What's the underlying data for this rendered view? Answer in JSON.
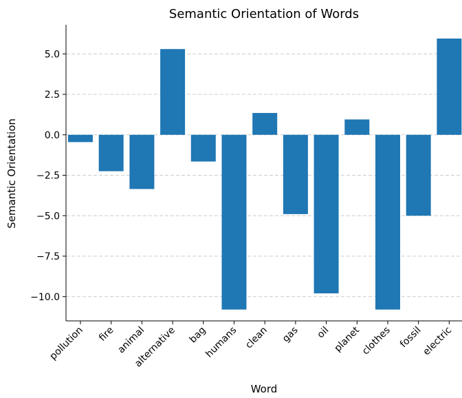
{
  "chart_data": {
    "type": "bar",
    "title": "Semantic Orientation of Words",
    "xlabel": "Word",
    "ylabel": "Semantic Orientation",
    "categories": [
      "pollution",
      "fire",
      "animal",
      "alternative",
      "bag",
      "humans",
      "clean",
      "gas",
      "oil",
      "planet",
      "clothes",
      "fossil",
      "electric"
    ],
    "values": [
      -0.45,
      -2.25,
      -3.35,
      5.3,
      -1.65,
      -10.8,
      1.35,
      -4.9,
      -9.8,
      0.95,
      -10.8,
      -5.0,
      5.95
    ],
    "ylim": [
      -11.5,
      6.8
    ],
    "yticks": [
      5.0,
      2.5,
      0.0,
      -2.5,
      -5.0,
      -7.5,
      -10.0
    ],
    "ytick_labels": [
      "5.0",
      "2.5",
      "0.0",
      "−2.5",
      "−5.0",
      "−7.5",
      "−10.0"
    ],
    "grid": "y-dashed",
    "bar_color": "#1f77b4",
    "grid_color": "#cccccc"
  }
}
